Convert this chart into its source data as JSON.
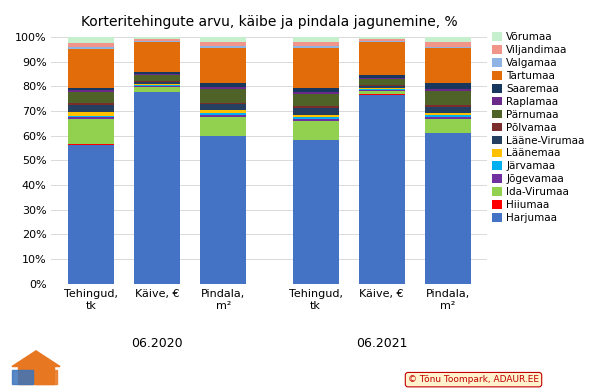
{
  "title": "Korteritehingute arvu, käibe ja pindala jagunemine, %",
  "bar_labels": [
    "Tehingud,\ntk",
    "Käive, €",
    "Pindala,\nm²",
    "Tehingud,\ntk",
    "Käive, €",
    "Pindala,\nm²"
  ],
  "group_labels": [
    "06.2020",
    "06.2021"
  ],
  "group_centers": [
    1,
    4.4
  ],
  "categories": [
    "Harjumaa",
    "Hiiumaa",
    "Ida-Virumaa",
    "Jõgevamaa",
    "Järvamaa",
    "Läänemaa",
    "Lääne-Virumaa",
    "Põlvamaa",
    "Pärnumaa",
    "Raplamaa",
    "Saaremaa",
    "Tartumaa",
    "Valgamaa",
    "Viljandimaa",
    "Võrumaa"
  ],
  "colors": [
    "#4472C4",
    "#FF0000",
    "#92D050",
    "#7030A0",
    "#00B0F0",
    "#FFC000",
    "#243F60",
    "#7B2C2C",
    "#4F6228",
    "#6B2A8A",
    "#17375E",
    "#E26B0A",
    "#8DB4E2",
    "#F1948A",
    "#C6EFCE"
  ],
  "bar_data": [
    [
      50.0,
      0.3,
      9.0,
      0.7,
      0.7,
      1.2,
      2.5,
      0.7,
      4.0,
      0.7,
      1.0,
      14.0,
      0.7,
      1.5,
      2.0
    ],
    [
      77.0,
      0.2,
      2.0,
      0.3,
      0.3,
      0.5,
      0.8,
      0.3,
      2.5,
      0.3,
      0.8,
      12.0,
      0.5,
      0.8,
      0.8
    ],
    [
      55.0,
      0.3,
      7.0,
      0.7,
      0.7,
      1.2,
      2.0,
      0.7,
      5.0,
      0.7,
      1.5,
      13.0,
      0.7,
      1.5,
      2.0
    ],
    [
      54.0,
      0.2,
      7.0,
      0.7,
      0.7,
      1.0,
      2.5,
      0.7,
      4.5,
      0.7,
      1.5,
      15.0,
      0.7,
      1.5,
      2.0
    ],
    [
      76.0,
      0.2,
      1.5,
      0.3,
      0.3,
      0.4,
      0.8,
      0.3,
      2.5,
      0.3,
      1.5,
      13.0,
      0.5,
      0.8,
      0.8
    ],
    [
      56.0,
      0.2,
      5.0,
      0.7,
      0.7,
      1.0,
      2.0,
      0.7,
      5.5,
      0.7,
      2.0,
      13.0,
      0.7,
      1.5,
      2.0
    ]
  ],
  "positions": [
    0,
    1,
    2,
    3.4,
    4.4,
    5.4
  ],
  "bar_width": 0.7,
  "figsize": [
    6.0,
    3.92
  ],
  "dpi": 100,
  "title_fontsize": 10,
  "tick_fontsize": 8,
  "legend_fontsize": 7.5,
  "xlabel_fontsize": 8,
  "group_label_fontsize": 9,
  "grid_color": "#D9D9D9",
  "bg_color": "#FFFFFF",
  "watermark_text": "© Tõnu Toompark, ADAUR.EE",
  "watermark_color": "#C00000",
  "watermark_bg": "#FFF2CC"
}
